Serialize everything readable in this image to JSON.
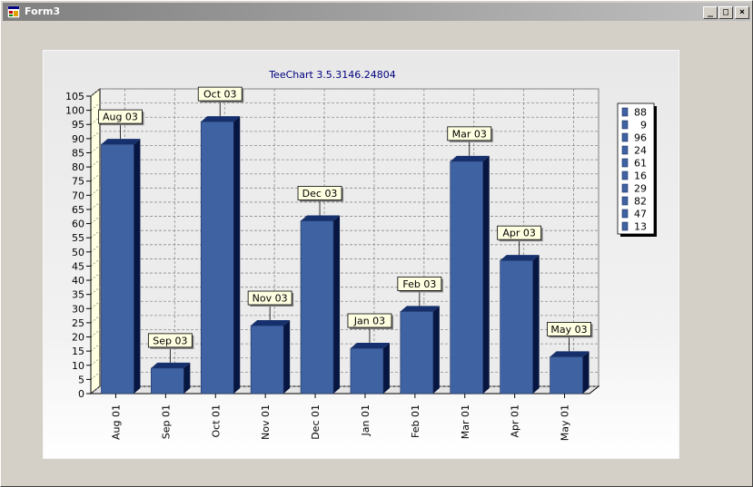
{
  "window": {
    "title": "Form3",
    "minimize_glyph": "_",
    "maximize_glyph": "□",
    "close_glyph": "×"
  },
  "chart_data": {
    "type": "bar",
    "title": "TeeChart 3.5.3146.24804",
    "categories": [
      "Aug 01",
      "Sep 01",
      "Oct 01",
      "Nov 01",
      "Dec 01",
      "Jan 01",
      "Feb 01",
      "Mar 01",
      "Apr 01",
      "May 01"
    ],
    "values": [
      88,
      9,
      96,
      24,
      61,
      16,
      29,
      82,
      47,
      13
    ],
    "mark_labels": [
      "Aug 03",
      "Sep 03",
      "Oct 03",
      "Nov 03",
      "Dec 03",
      "Jan 03",
      "Feb 03",
      "Mar 03",
      "Apr 03",
      "May 03"
    ],
    "legend": [
      "88",
      "9",
      "96",
      "24",
      "61",
      "16",
      "29",
      "82",
      "47",
      "13"
    ],
    "legend_position": "right",
    "ylim": [
      0,
      105
    ],
    "yticks": [
      0,
      5,
      10,
      15,
      20,
      25,
      30,
      35,
      40,
      45,
      50,
      55,
      60,
      65,
      70,
      75,
      80,
      85,
      90,
      95,
      100,
      105
    ],
    "grid": true,
    "view3d": true,
    "colors": {
      "bar_front": "#3f62a2",
      "bar_top": "#16306e",
      "bar_side": "#071640",
      "mark_background": "#ffffe1",
      "title": "#000080",
      "axis_wall": "#ffffe1"
    }
  }
}
